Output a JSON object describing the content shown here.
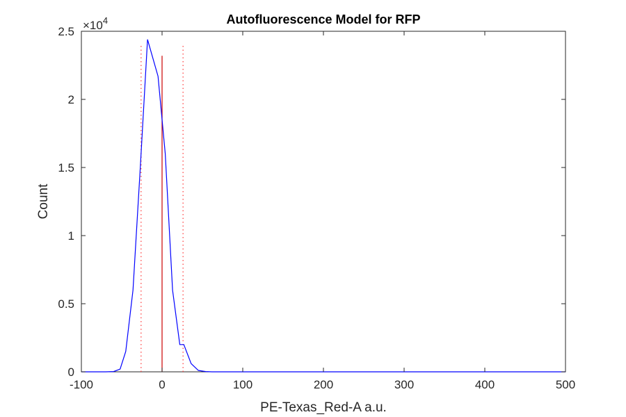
{
  "chart_data": {
    "type": "line",
    "title": "Autofluorescence Model for RFP",
    "xlabel": "PE-Texas_Red-A a.u.",
    "ylabel": "Count",
    "xlim": [
      -100,
      500
    ],
    "ylim": [
      0,
      25000
    ],
    "x_ticks": [
      -100,
      0,
      100,
      200,
      300,
      400,
      500
    ],
    "x_tick_labels": [
      "-100",
      "0",
      "100",
      "200",
      "300",
      "400",
      "500"
    ],
    "y_ticks": [
      0,
      5000,
      10000,
      15000,
      20000,
      25000
    ],
    "y_tick_labels": [
      "0",
      "0.5",
      "1",
      "1.5",
      "2",
      "2.5"
    ],
    "y_exponent_base": "×10",
    "y_exponent_power": "4",
    "grid": false,
    "series": [
      {
        "color": "#0000ff",
        "x": [
          -100,
          -90,
          -80,
          -70,
          -60,
          -52,
          -45,
          -36,
          -27,
          -18,
          -5,
          4,
          13,
          22,
          27,
          36,
          45,
          54,
          62,
          70,
          80,
          100,
          150,
          200,
          300,
          400,
          500
        ],
        "y": [
          0,
          0,
          0,
          0,
          20,
          200,
          1500,
          6000,
          15000,
          24400,
          21700,
          16000,
          6000,
          2000,
          2000,
          600,
          100,
          20,
          0,
          0,
          0,
          0,
          0,
          0,
          0,
          0,
          0
        ]
      }
    ],
    "vertical_lines": [
      {
        "x": 0,
        "ymax": 23200,
        "style": "solid",
        "color": "#cc0000"
      },
      {
        "x": -26,
        "ymax": 24000,
        "style": "dotted",
        "color": "#ff3333"
      },
      {
        "x": 26,
        "ymax": 24000,
        "style": "dotted",
        "color": "#ff3333"
      }
    ]
  }
}
